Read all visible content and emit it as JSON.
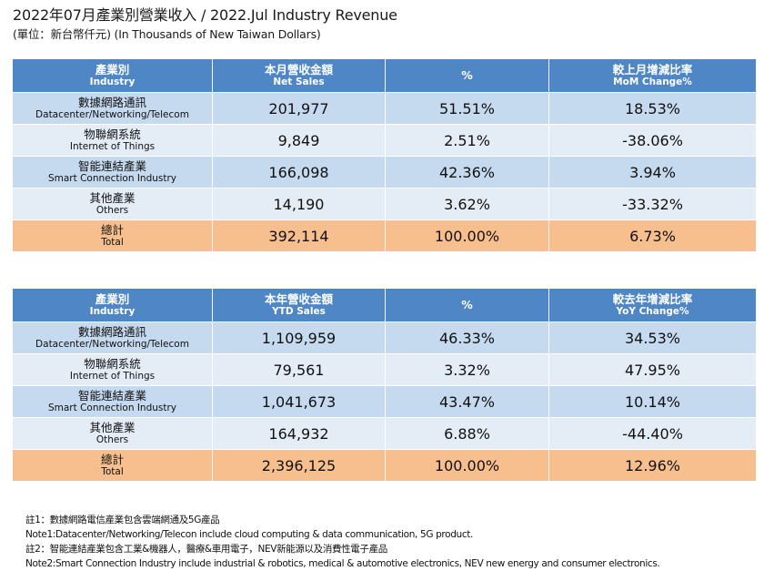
{
  "header": {
    "title": "2022年07月產業別營業收入 / 2022.Jul Industry Revenue",
    "unit": "(單位：新台幣仟元) (In Thousands of New Taiwan Dollars)"
  },
  "monthly": {
    "headers": [
      {
        "zh": "產業別",
        "en": "Industry"
      },
      {
        "zh": "本月營收金額",
        "en": "Net Sales"
      },
      {
        "zh": "%",
        "en": ""
      },
      {
        "zh": "較上月增減比率",
        "en": "MoM Change%"
      }
    ],
    "rows": [
      {
        "zh": "數據網路通訊",
        "en": "Datacenter/Networking/Telecom",
        "sales": "201,977",
        "pct": "51.51%",
        "change": "18.53%"
      },
      {
        "zh": "物聯網系統",
        "en": "Internet of Things",
        "sales": "9,849",
        "pct": "2.51%",
        "change": "-38.06%"
      },
      {
        "zh": "智能連結產業",
        "en": "Smart Connection Industry",
        "sales": "166,098",
        "pct": "42.36%",
        "change": "3.94%"
      },
      {
        "zh": "其他產業",
        "en": "Others",
        "sales": "14,190",
        "pct": "3.62%",
        "change": "-33.32%"
      }
    ],
    "total": {
      "zh": "總計",
      "en": "Total",
      "sales": "392,114",
      "pct": "100.00%",
      "change": "6.73%"
    }
  },
  "ytd": {
    "headers": [
      {
        "zh": "產業別",
        "en": "Industry"
      },
      {
        "zh": "本年營收金額",
        "en": "YTD Sales"
      },
      {
        "zh": "%",
        "en": ""
      },
      {
        "zh": "較去年增減比率",
        "en": "YoY Change%"
      }
    ],
    "rows": [
      {
        "zh": "數據網路通訊",
        "en": "Datacenter/Networking/Telecom",
        "sales": "1,109,959",
        "pct": "46.33%",
        "change": "34.53%"
      },
      {
        "zh": "物聯網系統",
        "en": "Internet of Things",
        "sales": "79,561",
        "pct": "3.32%",
        "change": "47.95%"
      },
      {
        "zh": "智能連結產業",
        "en": "Smart Connection Industry",
        "sales": "1,041,673",
        "pct": "43.47%",
        "change": "10.14%"
      },
      {
        "zh": "其他產業",
        "en": "Others",
        "sales": "164,932",
        "pct": "6.88%",
        "change": "-44.40%"
      }
    ],
    "total": {
      "zh": "總計",
      "en": "Total",
      "sales": "2,396,125",
      "pct": "100.00%",
      "change": "12.96%"
    }
  },
  "notes": [
    "註1：數據網路電信產業包含雲端網通及5G產品",
    "Note1:Datacenter/Networking/Telecon include cloud computing & data communication, 5G product.",
    "註2：智能連結產業包含工業&機器人，醫療&車用電子，NEV新能源以及消費性電子產品",
    "Note2:Smart Connection Industry include industrial & robotics, medical & automotive electronics, NEV new energy and consumer electronics."
  ],
  "colors": {
    "header_bg": "#4f86c6",
    "row_odd": "#c5d9ef",
    "row_even": "#e4ecf6",
    "total_row": "#f7bf8d"
  }
}
